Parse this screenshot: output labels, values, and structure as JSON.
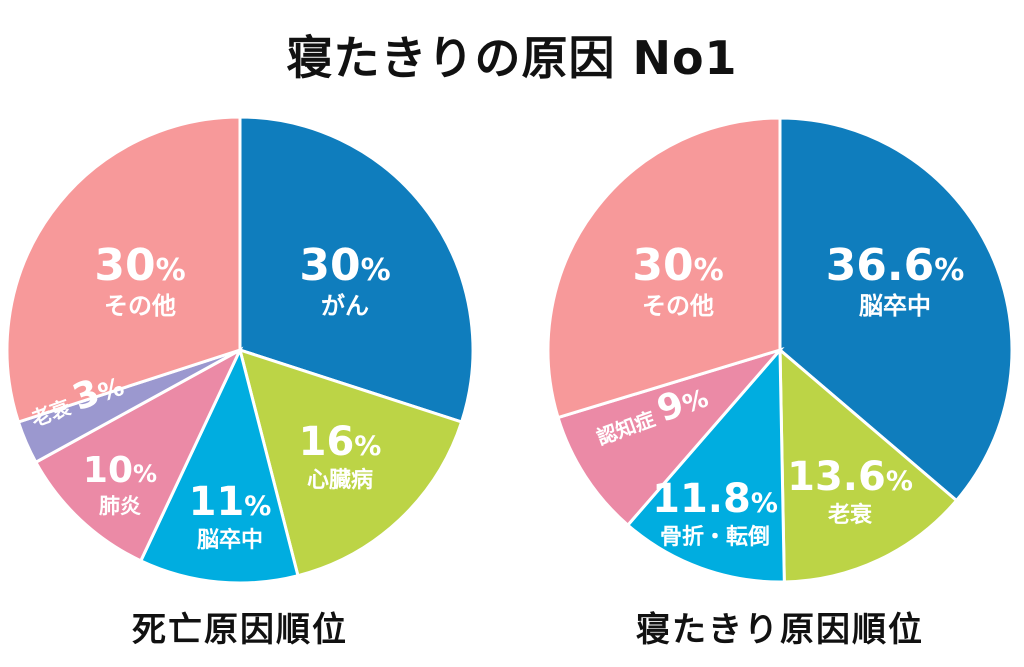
{
  "title": "寝たきりの原因 No1",
  "chart_data": [
    {
      "type": "pie",
      "title": "死亡原因順位",
      "slices": [
        {
          "label": "がん",
          "value": 30,
          "display": "30",
          "color": "#0f7dbd"
        },
        {
          "label": "心臓病",
          "value": 16,
          "display": "16",
          "color": "#bcd446"
        },
        {
          "label": "脳卒中",
          "value": 11,
          "display": "11",
          "color": "#00ade0"
        },
        {
          "label": "肺炎",
          "value": 10,
          "display": "10",
          "color": "#eb8aa6"
        },
        {
          "label": "老衰",
          "value": 3,
          "display": "3",
          "color": "#9b98cf"
        },
        {
          "label": "その他",
          "value": 30,
          "display": "30",
          "color": "#f7999a"
        }
      ]
    },
    {
      "type": "pie",
      "title": "寝たきり原因順位",
      "slices": [
        {
          "label": "脳卒中",
          "value": 36.6,
          "display": "36.6",
          "color": "#0f7dbd"
        },
        {
          "label": "老衰",
          "value": 13.6,
          "display": "13.6",
          "color": "#bcd446"
        },
        {
          "label": "骨折・転倒",
          "value": 11.8,
          "display": "11.8",
          "color": "#00ade0"
        },
        {
          "label": "認知症",
          "value": 9,
          "display": "9",
          "color": "#eb8aa6"
        },
        {
          "label": "その他",
          "value": 30,
          "display": "30",
          "color": "#f7999a"
        }
      ]
    }
  ]
}
